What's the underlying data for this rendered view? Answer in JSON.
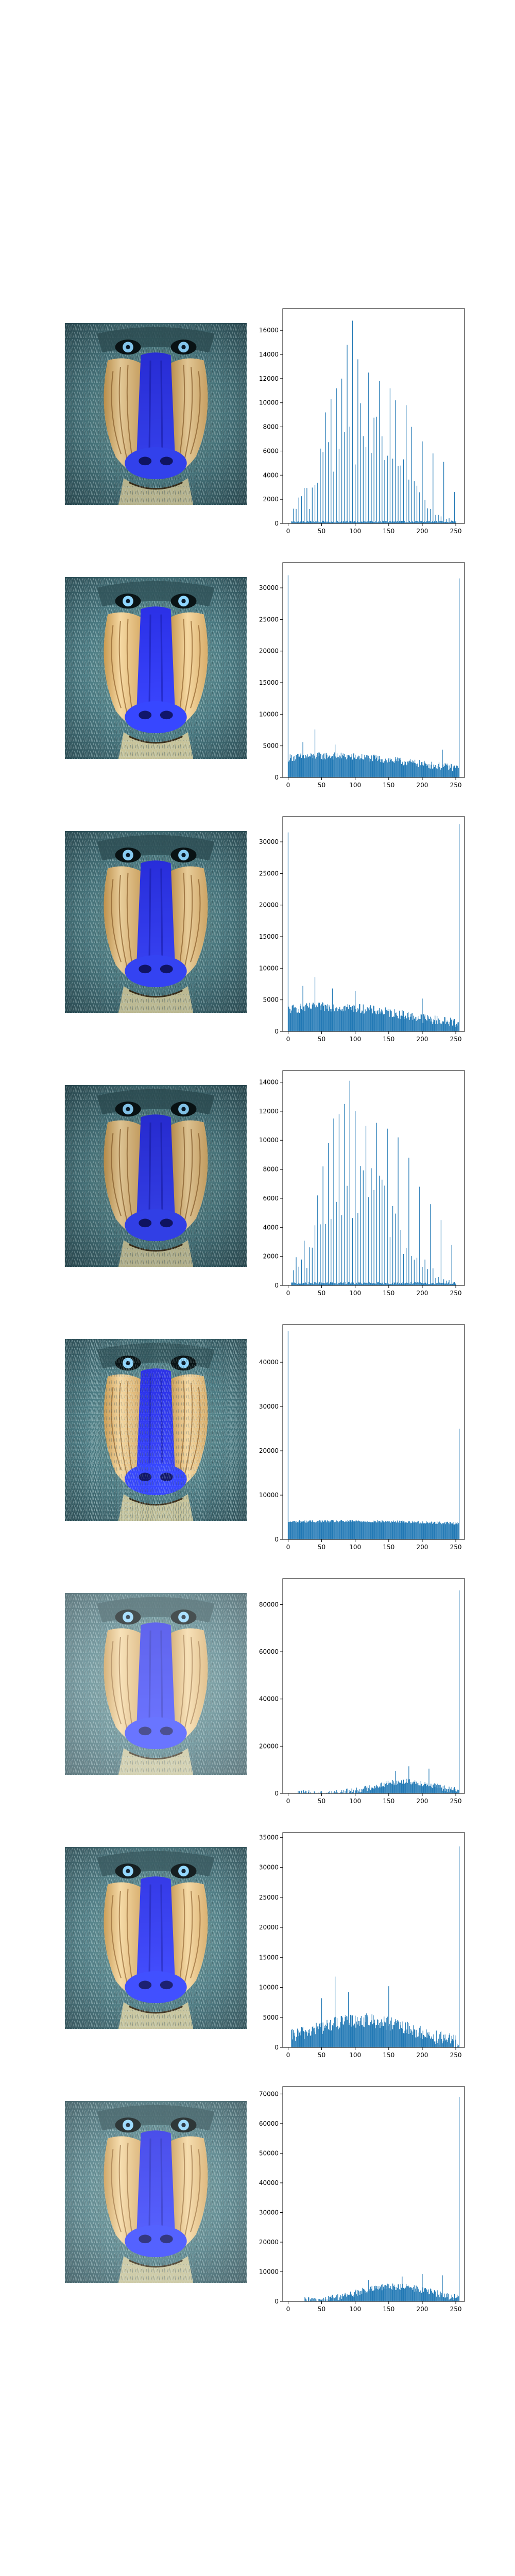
{
  "figure": {
    "layout": "8 rows x 2 columns: processed mandrill image (left) + intensity histogram (right)",
    "bar_color": "#1f77b4"
  },
  "chart_data": [
    {
      "type": "bar",
      "image_subject": "mandrill-face",
      "image_tint": {
        "overlay": "#000000",
        "opacity": 0.08
      },
      "xlim": [
        -8,
        263
      ],
      "ylim": [
        0,
        17800
      ],
      "xticks": [
        0,
        50,
        100,
        150,
        200,
        250
      ],
      "yticks": [
        0,
        2000,
        4000,
        6000,
        8000,
        10000,
        12000,
        14000,
        16000
      ],
      "distribution": {
        "mode": "comb",
        "center": 110,
        "sigma": 55,
        "base": 150,
        "comb_peak": 9000,
        "step": 4,
        "low": 5,
        "high": 250
      },
      "spikes": [
        {
          "x": 96,
          "y": 16800
        },
        {
          "x": 88,
          "y": 14800
        },
        {
          "x": 104,
          "y": 13600
        },
        {
          "x": 80,
          "y": 12000
        },
        {
          "x": 120,
          "y": 12500
        },
        {
          "x": 72,
          "y": 11200
        },
        {
          "x": 136,
          "y": 11800
        },
        {
          "x": 64,
          "y": 10300
        },
        {
          "x": 152,
          "y": 11200
        },
        {
          "x": 160,
          "y": 10200
        },
        {
          "x": 176,
          "y": 9800
        },
        {
          "x": 184,
          "y": 8000
        },
        {
          "x": 200,
          "y": 6800
        },
        {
          "x": 216,
          "y": 5800
        },
        {
          "x": 232,
          "y": 5100
        },
        {
          "x": 248,
          "y": 2600
        },
        {
          "x": 56,
          "y": 9200
        },
        {
          "x": 48,
          "y": 6200
        },
        {
          "x": 40,
          "y": 3200
        },
        {
          "x": 32,
          "y": 1200
        }
      ]
    },
    {
      "type": "bar",
      "image_subject": "mandrill-face",
      "image_tint": {
        "overlay": "#000000",
        "opacity": 0.0
      },
      "xlim": [
        -8,
        263
      ],
      "ylim": [
        0,
        34000
      ],
      "xticks": [
        0,
        50,
        100,
        150,
        200,
        250
      ],
      "yticks": [
        0,
        5000,
        10000,
        15000,
        20000,
        25000,
        30000
      ],
      "distribution": {
        "mode": "flat",
        "center": 60,
        "sigma": 120,
        "base": 800,
        "amp": 2600,
        "noise": 1200,
        "low": 0,
        "high": 255
      },
      "spikes": [
        {
          "x": 0,
          "y": 32000
        },
        {
          "x": 255,
          "y": 31500
        },
        {
          "x": 40,
          "y": 7600
        },
        {
          "x": 22,
          "y": 5600
        },
        {
          "x": 70,
          "y": 5200
        },
        {
          "x": 230,
          "y": 4400
        }
      ]
    },
    {
      "type": "bar",
      "image_subject": "mandrill-face",
      "image_tint": {
        "overlay": "#000000",
        "opacity": 0.05
      },
      "xlim": [
        -8,
        263
      ],
      "ylim": [
        0,
        34000
      ],
      "xticks": [
        0,
        50,
        100,
        150,
        200,
        250
      ],
      "yticks": [
        0,
        5000,
        10000,
        15000,
        20000,
        25000,
        30000
      ],
      "distribution": {
        "mode": "flat",
        "center": 60,
        "sigma": 110,
        "base": 700,
        "amp": 3200,
        "noise": 1500,
        "low": 0,
        "high": 255
      },
      "spikes": [
        {
          "x": 0,
          "y": 31500
        },
        {
          "x": 255,
          "y": 32800
        },
        {
          "x": 40,
          "y": 8600
        },
        {
          "x": 22,
          "y": 7200
        },
        {
          "x": 66,
          "y": 6800
        },
        {
          "x": 100,
          "y": 6400
        },
        {
          "x": 200,
          "y": 5200
        }
      ]
    },
    {
      "type": "bar",
      "image_subject": "mandrill-face",
      "image_tint": {
        "overlay": "#000000",
        "opacity": 0.1
      },
      "xlim": [
        -8,
        263
      ],
      "ylim": [
        0,
        14800
      ],
      "xticks": [
        0,
        50,
        100,
        150,
        200,
        250
      ],
      "yticks": [
        0,
        2000,
        4000,
        6000,
        8000,
        10000,
        12000,
        14000
      ],
      "distribution": {
        "mode": "comb",
        "center": 105,
        "sigma": 55,
        "base": 150,
        "comb_peak": 8000,
        "step": 4,
        "low": 5,
        "high": 250
      },
      "spikes": [
        {
          "x": 92,
          "y": 14100
        },
        {
          "x": 84,
          "y": 12500
        },
        {
          "x": 76,
          "y": 11800
        },
        {
          "x": 100,
          "y": 12000
        },
        {
          "x": 68,
          "y": 11500
        },
        {
          "x": 116,
          "y": 11000
        },
        {
          "x": 132,
          "y": 11200
        },
        {
          "x": 148,
          "y": 10800
        },
        {
          "x": 60,
          "y": 9800
        },
        {
          "x": 164,
          "y": 10200
        },
        {
          "x": 180,
          "y": 8800
        },
        {
          "x": 196,
          "y": 6800
        },
        {
          "x": 212,
          "y": 5600
        },
        {
          "x": 228,
          "y": 4500
        },
        {
          "x": 244,
          "y": 2800
        },
        {
          "x": 52,
          "y": 8200
        },
        {
          "x": 44,
          "y": 6200
        },
        {
          "x": 36,
          "y": 2600
        },
        {
          "x": 28,
          "y": 1200
        }
      ]
    },
    {
      "type": "bar",
      "image_subject": "mandrill-face",
      "image_tint": {
        "overlay": "#000000",
        "opacity": 0.0
      },
      "image_contrast": 1.5,
      "xlim": [
        -8,
        263
      ],
      "ylim": [
        0,
        48500
      ],
      "xticks": [
        0,
        50,
        100,
        150,
        200,
        250
      ],
      "yticks": [
        0,
        10000,
        20000,
        30000,
        40000
      ],
      "distribution": {
        "mode": "flat",
        "center": 80,
        "sigma": 260,
        "base": 1800,
        "amp": 2300,
        "noise": 600,
        "low": 0,
        "high": 255
      },
      "spikes": [
        {
          "x": 0,
          "y": 47000
        },
        {
          "x": 255,
          "y": 25000
        }
      ]
    },
    {
      "type": "bar",
      "image_subject": "mandrill-face",
      "image_tint": {
        "overlay": "#ffffff",
        "opacity": 0.25
      },
      "xlim": [
        -8,
        263
      ],
      "ylim": [
        0,
        91000
      ],
      "xticks": [
        0,
        50,
        100,
        150,
        200,
        250
      ],
      "yticks": [
        0,
        20000,
        40000,
        60000,
        80000
      ],
      "distribution": {
        "mode": "flat",
        "center": 175,
        "sigma": 45,
        "base": 0,
        "amp": 5000,
        "noise": 2600,
        "low": 15,
        "high": 255
      },
      "spikes": [
        {
          "x": 255,
          "y": 86000
        },
        {
          "x": 180,
          "y": 11500
        },
        {
          "x": 210,
          "y": 10500
        },
        {
          "x": 160,
          "y": 9500
        }
      ]
    },
    {
      "type": "bar",
      "image_subject": "mandrill-face",
      "image_tint": {
        "overlay": "#ffffff",
        "opacity": 0.05
      },
      "xlim": [
        -8,
        263
      ],
      "ylim": [
        0,
        35800
      ],
      "xticks": [
        0,
        50,
        100,
        150,
        200,
        250
      ],
      "yticks": [
        0,
        5000,
        10000,
        15000,
        20000,
        25000,
        30000,
        35000
      ],
      "distribution": {
        "mode": "flat",
        "center": 110,
        "sigma": 75,
        "base": 300,
        "amp": 4200,
        "noise": 2400,
        "low": 5,
        "high": 255
      },
      "spikes": [
        {
          "x": 255,
          "y": 33500
        },
        {
          "x": 70,
          "y": 11800
        },
        {
          "x": 150,
          "y": 10200
        },
        {
          "x": 50,
          "y": 8200
        },
        {
          "x": 90,
          "y": 9200
        }
      ]
    },
    {
      "type": "bar",
      "image_subject": "mandrill-face",
      "image_tint": {
        "overlay": "#ffffff",
        "opacity": 0.15
      },
      "xlim": [
        -8,
        263
      ],
      "ylim": [
        0,
        72500
      ],
      "xticks": [
        0,
        50,
        100,
        150,
        200,
        250
      ],
      "yticks": [
        0,
        10000,
        20000,
        30000,
        40000,
        50000,
        60000,
        70000
      ],
      "distribution": {
        "mode": "flat",
        "center": 160,
        "sigma": 55,
        "base": 0,
        "amp": 5000,
        "noise": 2400,
        "low": 25,
        "high": 255
      },
      "spikes": [
        {
          "x": 255,
          "y": 69000
        },
        {
          "x": 200,
          "y": 9200
        },
        {
          "x": 170,
          "y": 8400
        },
        {
          "x": 120,
          "y": 7200
        },
        {
          "x": 230,
          "y": 8800
        }
      ]
    }
  ]
}
